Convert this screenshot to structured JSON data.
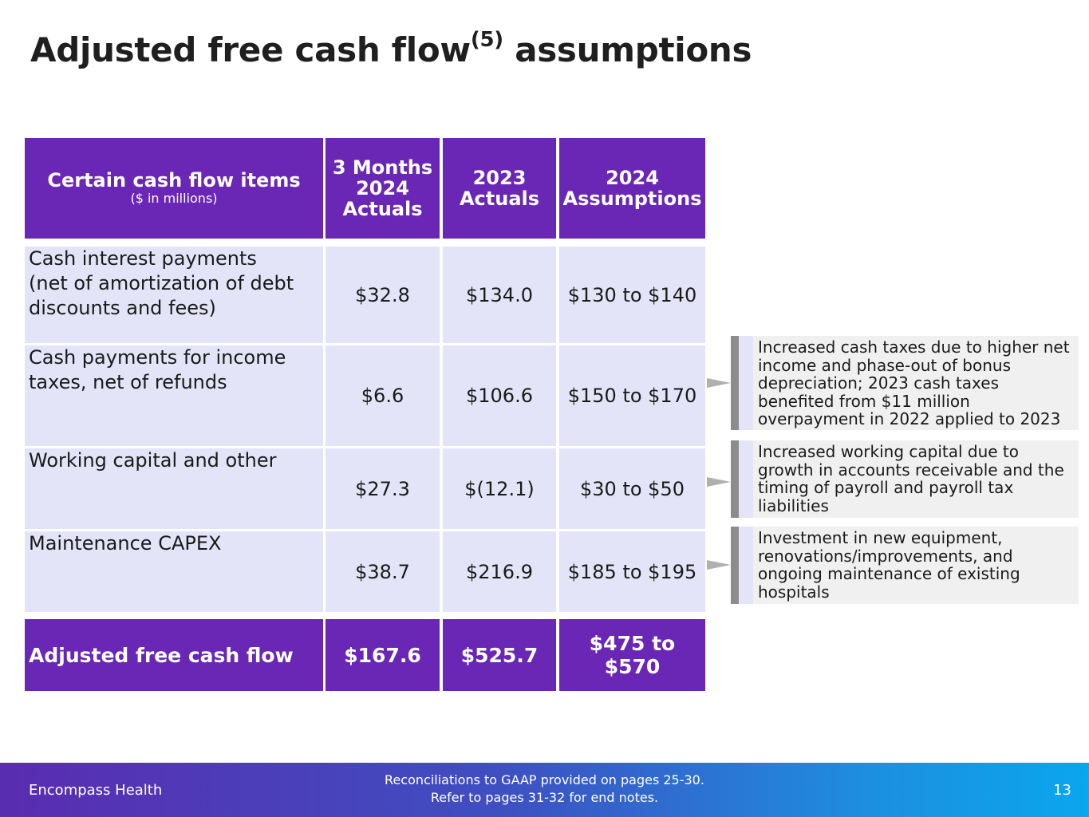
{
  "title": {
    "main": "Adjusted free cash flow",
    "superscript": "(5)",
    "suffix": "assumptions"
  },
  "table": {
    "headers": {
      "label": "Certain cash flow items",
      "label_sub": "($ in millions)",
      "col1": [
        "3 Months",
        "2024",
        "Actuals"
      ],
      "col2": [
        "2023",
        "Actuals"
      ],
      "col3": [
        "2024",
        "Assumptions"
      ]
    },
    "rows": [
      {
        "label": [
          "Cash interest payments",
          "(net of amortization of debt",
          "discounts and fees)"
        ],
        "q1_2024": "$32.8",
        "fy2023": "$134.0",
        "assumption_2024": "$130 to $140"
      },
      {
        "label": [
          "Cash payments for income",
          "taxes, net of refunds"
        ],
        "q1_2024": "$6.6",
        "fy2023": "$106.6",
        "assumption_2024": "$150 to $170"
      },
      {
        "label": [
          "Working capital and other"
        ],
        "q1_2024": "$27.3",
        "fy2023": "$(12.1)",
        "assumption_2024": "$30 to $50"
      },
      {
        "label": [
          "Maintenance CAPEX"
        ],
        "q1_2024": "$38.7",
        "fy2023": "$216.9",
        "assumption_2024": "$185 to $195"
      }
    ],
    "total": {
      "label": "Adjusted free cash flow",
      "q1_2024": "$167.6",
      "fy2023": "$525.7",
      "assumption_2024": "$475 to $570"
    }
  },
  "notes": [
    [
      "Increased cash taxes due to higher net",
      "income and phase-out of bonus",
      "depreciation; 2023 cash taxes",
      "benefited from $11 million",
      "overpayment in 2022 applied to 2023"
    ],
    [
      "Increased working capital due to",
      "growth in accounts receivable and the",
      "timing of payroll and payroll tax",
      "liabilities"
    ],
    [
      "Investment in new equipment,",
      "renovations/improvements, and",
      "ongoing maintenance of existing",
      "hospitals"
    ]
  ],
  "footer": {
    "brand": "Encompass Health",
    "note_line1": "Reconciliations to GAAP provided on pages 25-30.",
    "note_line2": "Refer to pages 31-32 for end notes.",
    "page_number": "13"
  },
  "colors": {
    "header_purple": "#6a26b5",
    "row_lavender": "#e4e4f8",
    "note_gray": "#f0f0f0"
  }
}
